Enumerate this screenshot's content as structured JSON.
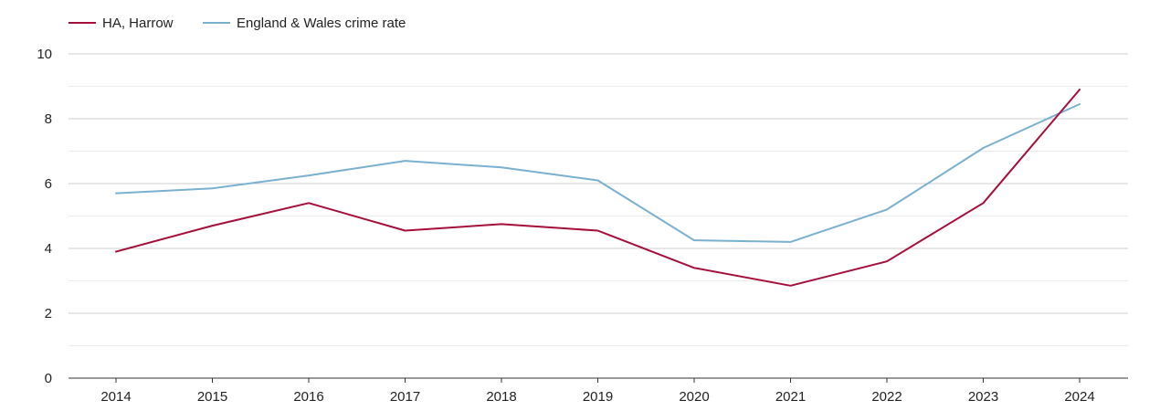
{
  "chart_data": {
    "type": "line",
    "title": "",
    "xlabel": "",
    "ylabel": "",
    "categories": [
      "2014",
      "2015",
      "2016",
      "2017",
      "2018",
      "2019",
      "2020",
      "2021",
      "2022",
      "2023",
      "2024"
    ],
    "ylim": [
      0,
      10
    ],
    "yticks": [
      "0",
      "2",
      "4",
      "6",
      "8",
      "10"
    ],
    "grid": true,
    "legend_position": "top-left",
    "series": [
      {
        "name": "HA, Harrow",
        "color": "#a50f3a",
        "values": [
          3.9,
          4.7,
          5.4,
          4.55,
          4.75,
          4.55,
          3.4,
          2.85,
          3.6,
          5.4,
          8.9
        ]
      },
      {
        "name": "England & Wales crime rate",
        "color": "#7ab0d0",
        "values": [
          5.7,
          5.85,
          6.25,
          6.7,
          6.5,
          6.1,
          4.25,
          4.2,
          5.2,
          7.1,
          8.45
        ]
      }
    ]
  }
}
